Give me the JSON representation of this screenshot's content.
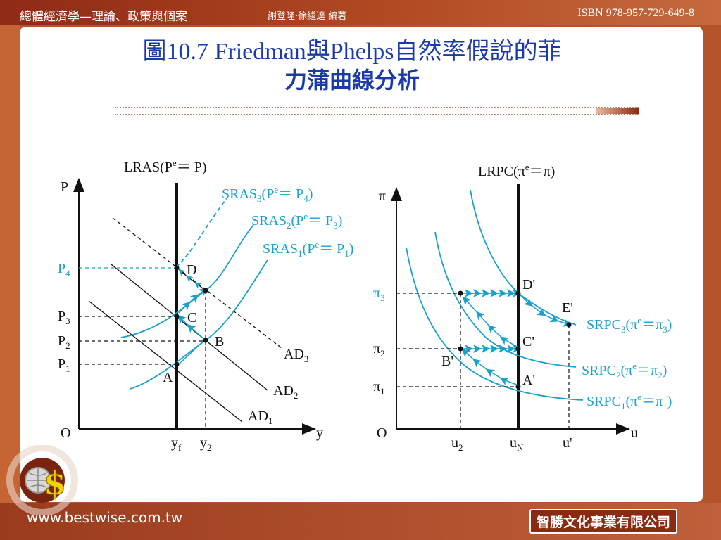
{
  "header": {
    "book_title": "總體經濟學—理論、政策與個案",
    "authors": "謝登隆‧徐繼達 編著",
    "isbn": "ISBN 978-957-729-649-8"
  },
  "slide": {
    "title_line1": "圖10.7 Friedman與Phelps自然率假說的菲",
    "title_line2": "力蒲曲線分析"
  },
  "footer": {
    "website": "www.bestwise.com.tw",
    "publisher": "智勝文化事業有限公司"
  },
  "colors": {
    "curve": "#1aa0cf",
    "axis": "#111111",
    "brand": "#b5532b",
    "title": "#1a3aa8"
  },
  "left_diagram": {
    "y_axis": "P",
    "x_axis": "y",
    "origin": "O",
    "lras": {
      "main": "LRAS",
      "open": "(P",
      "sup": "e",
      "rest": "＝ P)"
    },
    "sras3": {
      "main": "SRAS",
      "sub": "3",
      "open": "(P",
      "sup": "e",
      "mid": "＝ P",
      "sub2": "4",
      "close": ")"
    },
    "sras2": {
      "main": "SRAS",
      "sub": "2",
      "open": "(P",
      "sup": "e",
      "mid": "＝ P",
      "sub2": "3",
      "close": ")"
    },
    "sras1": {
      "main": "SRAS",
      "sub": "1",
      "open": "(P",
      "sup": "e",
      "mid": "＝ P",
      "sub2": "1",
      "close": ")"
    },
    "p4": {
      "main": "P",
      "sub": "4"
    },
    "p3": {
      "main": "P",
      "sub": "3"
    },
    "p2": {
      "main": "P",
      "sub": "2"
    },
    "p1": {
      "main": "P",
      "sub": "1"
    },
    "ad3": {
      "main": "AD",
      "sub": "3"
    },
    "ad2": {
      "main": "AD",
      "sub": "2"
    },
    "ad1": {
      "main": "AD",
      "sub": "1"
    },
    "yf": {
      "main": "y",
      "sub": "f"
    },
    "y2": {
      "main": "y",
      "sub": "2"
    },
    "points": [
      "A",
      "B",
      "C",
      "D"
    ]
  },
  "right_diagram": {
    "y_axis": "π",
    "x_axis": "u",
    "origin": "O",
    "lrpc": {
      "main": "LRPC",
      "open": "(π",
      "sup": "e",
      "rest": "＝π)"
    },
    "srpc3": {
      "main": "SRPC",
      "sub": "3",
      "open": "(π",
      "sup": "e",
      "mid": "＝π",
      "sub2": "3",
      "close": ")"
    },
    "srpc2": {
      "main": "SRPC",
      "sub": "2",
      "open": "(π",
      "sup": "e",
      "mid": "＝π",
      "sub2": "2",
      "close": ")"
    },
    "srpc1": {
      "main": "SRPC",
      "sub": "1",
      "open": "(π",
      "sup": "e",
      "mid": "＝π",
      "sub2": "1",
      "close": ")"
    },
    "pi3": {
      "main": "π",
      "sub": "3"
    },
    "pi2": {
      "main": "π",
      "sub": "2"
    },
    "pi1": {
      "main": "π",
      "sub": "1"
    },
    "u2": {
      "main": "u",
      "sub": "2"
    },
    "un": {
      "main": "u",
      "sub": "N"
    },
    "uprime": "u'",
    "points": [
      "A'",
      "B'",
      "C'",
      "D'",
      "E'"
    ]
  }
}
